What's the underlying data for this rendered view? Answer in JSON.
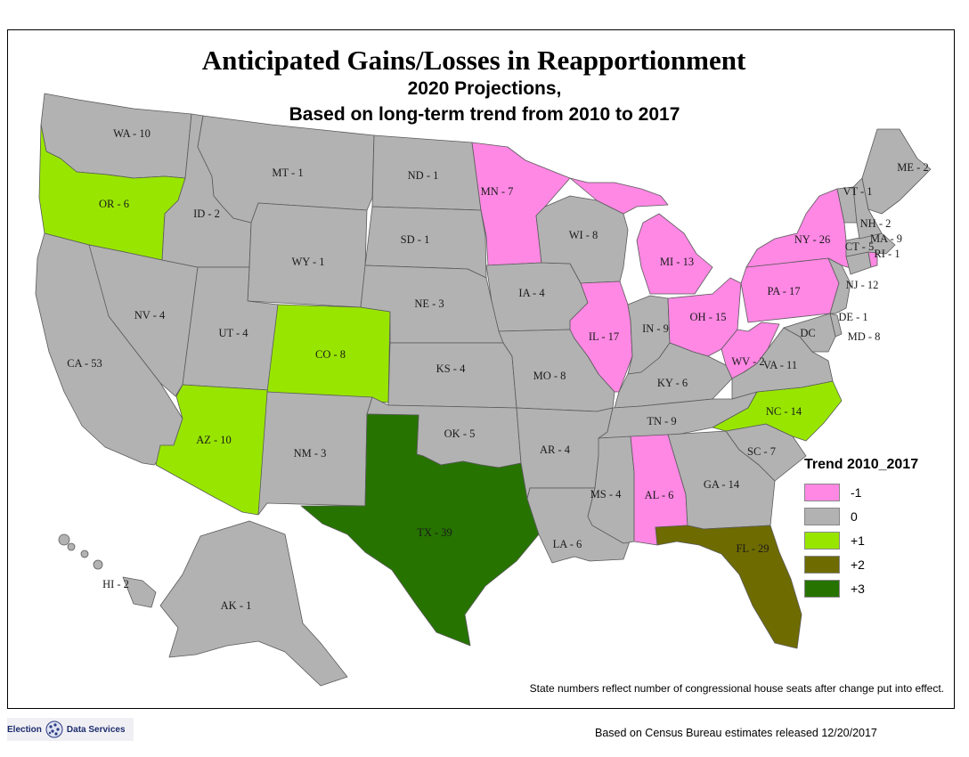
{
  "title": "Anticipated Gains/Losses in Reapportionment",
  "subtitle_line1": "2020 Projections,",
  "subtitle_line2": "Based on long-term trend from 2010 to 2017",
  "legend": {
    "title": "Trend 2010_2017",
    "items": [
      {
        "label": "-1",
        "color": "#ff88e4"
      },
      {
        "label": "0",
        "color": "#b2b2b2"
      },
      {
        "label": "+1",
        "color": "#98e600"
      },
      {
        "label": "+2",
        "color": "#6e6b00"
      },
      {
        "label": "+3",
        "color": "#267300"
      }
    ]
  },
  "states": [
    {
      "abbr": "WA",
      "label": "WA - 10",
      "trend": "0"
    },
    {
      "abbr": "OR",
      "label": "OR - 6",
      "trend": "+1"
    },
    {
      "abbr": "CA",
      "label": "CA - 53",
      "trend": "0"
    },
    {
      "abbr": "NV",
      "label": "NV - 4",
      "trend": "0"
    },
    {
      "abbr": "ID",
      "label": "ID - 2",
      "trend": "0"
    },
    {
      "abbr": "MT",
      "label": "MT - 1",
      "trend": "0"
    },
    {
      "abbr": "WY",
      "label": "WY - 1",
      "trend": "0"
    },
    {
      "abbr": "UT",
      "label": "UT - 4",
      "trend": "0"
    },
    {
      "abbr": "AZ",
      "label": "AZ - 10",
      "trend": "+1"
    },
    {
      "abbr": "CO",
      "label": "CO - 8",
      "trend": "+1"
    },
    {
      "abbr": "NM",
      "label": "NM - 3",
      "trend": "0"
    },
    {
      "abbr": "ND",
      "label": "ND - 1",
      "trend": "0"
    },
    {
      "abbr": "SD",
      "label": "SD - 1",
      "trend": "0"
    },
    {
      "abbr": "NE",
      "label": "NE - 3",
      "trend": "0"
    },
    {
      "abbr": "KS",
      "label": "KS - 4",
      "trend": "0"
    },
    {
      "abbr": "OK",
      "label": "OK - 5",
      "trend": "0"
    },
    {
      "abbr": "TX",
      "label": "TX - 39",
      "trend": "+3"
    },
    {
      "abbr": "MN",
      "label": "MN - 7",
      "trend": "-1"
    },
    {
      "abbr": "IA",
      "label": "IA - 4",
      "trend": "0"
    },
    {
      "abbr": "MO",
      "label": "MO - 8",
      "trend": "0"
    },
    {
      "abbr": "AR",
      "label": "AR - 4",
      "trend": "0"
    },
    {
      "abbr": "LA",
      "label": "LA - 6",
      "trend": "0"
    },
    {
      "abbr": "WI",
      "label": "WI - 8",
      "trend": "0"
    },
    {
      "abbr": "IL",
      "label": "IL - 17",
      "trend": "-1"
    },
    {
      "abbr": "MI",
      "label": "MI - 13",
      "trend": "-1"
    },
    {
      "abbr": "IN",
      "label": "IN - 9",
      "trend": "0"
    },
    {
      "abbr": "OH",
      "label": "OH - 15",
      "trend": "-1"
    },
    {
      "abbr": "KY",
      "label": "KY - 6",
      "trend": "0"
    },
    {
      "abbr": "TN",
      "label": "TN - 9",
      "trend": "0"
    },
    {
      "abbr": "MS",
      "label": "MS - 4",
      "trend": "0"
    },
    {
      "abbr": "AL",
      "label": "AL - 6",
      "trend": "-1"
    },
    {
      "abbr": "GA",
      "label": "GA - 14",
      "trend": "0"
    },
    {
      "abbr": "FL",
      "label": "FL - 29",
      "trend": "+2"
    },
    {
      "abbr": "SC",
      "label": "SC - 7",
      "trend": "0"
    },
    {
      "abbr": "NC",
      "label": "NC - 14",
      "trend": "+1"
    },
    {
      "abbr": "VA",
      "label": "VA - 11",
      "trend": "0"
    },
    {
      "abbr": "WV",
      "label": "WV - 2",
      "trend": "-1"
    },
    {
      "abbr": "PA",
      "label": "PA - 17",
      "trend": "-1"
    },
    {
      "abbr": "NY",
      "label": "NY - 26",
      "trend": "-1"
    },
    {
      "abbr": "NJ",
      "label": "NJ - 12",
      "trend": "0"
    },
    {
      "abbr": "DE",
      "label": "DE - 1",
      "trend": "0"
    },
    {
      "abbr": "MD",
      "label": "MD - 8",
      "trend": "0"
    },
    {
      "abbr": "DC",
      "label": "DC",
      "trend": "0"
    },
    {
      "abbr": "CT",
      "label": "CT - 5",
      "trend": "0"
    },
    {
      "abbr": "RI",
      "label": "RI - 1",
      "trend": "-1"
    },
    {
      "abbr": "MA",
      "label": "MA - 9",
      "trend": "0"
    },
    {
      "abbr": "VT",
      "label": "VT - 1",
      "trend": "0"
    },
    {
      "abbr": "NH",
      "label": "NH - 2",
      "trend": "0"
    },
    {
      "abbr": "ME",
      "label": "ME - 2",
      "trend": "0"
    },
    {
      "abbr": "AK",
      "label": "AK - 1",
      "trend": "0"
    },
    {
      "abbr": "HI",
      "label": "HI - 2",
      "trend": "0"
    }
  ],
  "note": "State numbers reflect number of congressional house seats after change put into effect.",
  "source": "Based on Census Bureau estimates released 12/20/2017",
  "logo": {
    "left_text": "Election",
    "right_text": "Data Services",
    "icon": "globe-dots-icon"
  }
}
